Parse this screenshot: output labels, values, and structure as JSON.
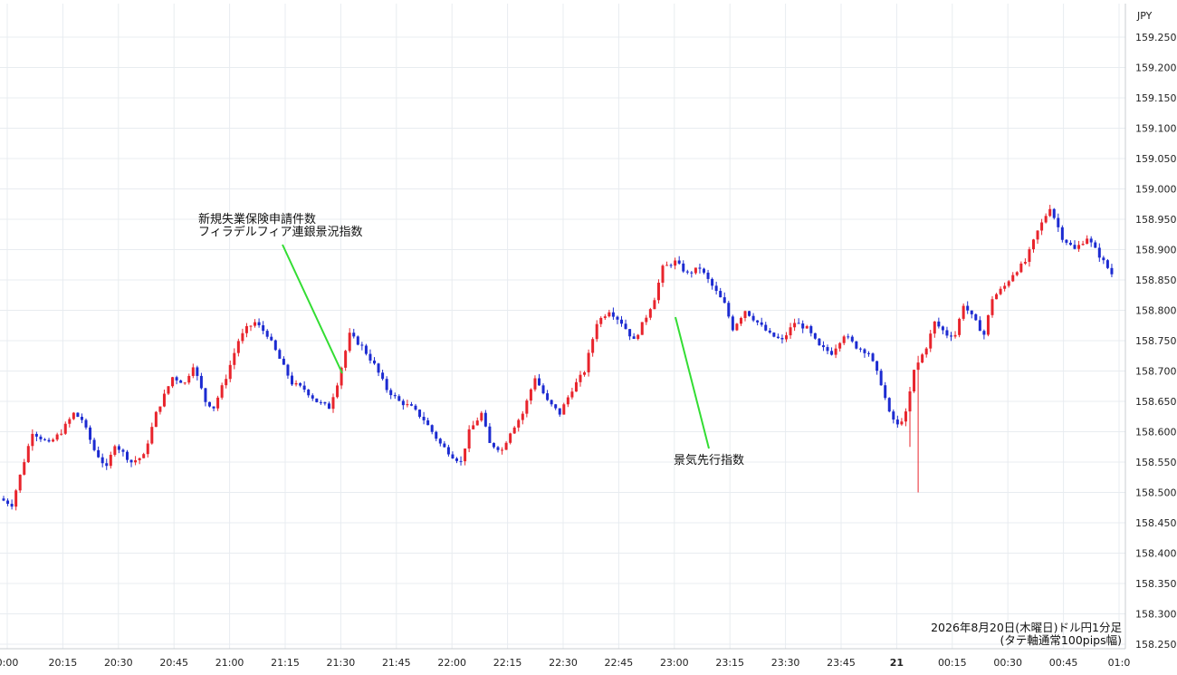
{
  "chart_data": {
    "type": "candlestick",
    "title": "2026年8月20日(木曜日)ドル円1分足",
    "subtitle": "(タテ軸通常100pips幅)",
    "y_unit": "JPY",
    "ylim": [
      158.25,
      159.25
    ],
    "y_ticks": [
      "159.250",
      "159.200",
      "159.150",
      "159.100",
      "159.050",
      "159.000",
      "158.950",
      "158.900",
      "158.850",
      "158.800",
      "158.750",
      "158.700",
      "158.650",
      "158.600",
      "158.550",
      "158.500",
      "158.450",
      "158.400",
      "158.350",
      "158.300",
      "158.250"
    ],
    "x_ticks": [
      {
        "label": "0:00",
        "bold": false
      },
      {
        "label": "20:15",
        "bold": false
      },
      {
        "label": "20:30",
        "bold": false
      },
      {
        "label": "20:45",
        "bold": false
      },
      {
        "label": "21:00",
        "bold": false
      },
      {
        "label": "21:15",
        "bold": false
      },
      {
        "label": "21:30",
        "bold": false
      },
      {
        "label": "21:45",
        "bold": false
      },
      {
        "label": "22:00",
        "bold": false
      },
      {
        "label": "22:15",
        "bold": false
      },
      {
        "label": "22:30",
        "bold": false
      },
      {
        "label": "22:45",
        "bold": false
      },
      {
        "label": "23:00",
        "bold": false
      },
      {
        "label": "23:15",
        "bold": false
      },
      {
        "label": "23:30",
        "bold": false
      },
      {
        "label": "23:45",
        "bold": false
      },
      {
        "label": "21",
        "bold": true
      },
      {
        "label": "00:15",
        "bold": false
      },
      {
        "label": "00:30",
        "bold": false
      },
      {
        "label": "00:45",
        "bold": false
      },
      {
        "label": "01:0",
        "bold": false
      }
    ],
    "path_points": [
      [
        0,
        158.49
      ],
      [
        3,
        158.48
      ],
      [
        8,
        158.6
      ],
      [
        12,
        158.58
      ],
      [
        15,
        158.6
      ],
      [
        18,
        158.63
      ],
      [
        20,
        158.62
      ],
      [
        23,
        158.57
      ],
      [
        26,
        158.54
      ],
      [
        28,
        158.58
      ],
      [
        32,
        158.55
      ],
      [
        35,
        158.56
      ],
      [
        38,
        158.63
      ],
      [
        42,
        158.69
      ],
      [
        45,
        158.68
      ],
      [
        47,
        158.71
      ],
      [
        50,
        158.65
      ],
      [
        52,
        158.64
      ],
      [
        55,
        158.69
      ],
      [
        58,
        158.75
      ],
      [
        60,
        158.77
      ],
      [
        62,
        158.78
      ],
      [
        65,
        158.76
      ],
      [
        68,
        158.72
      ],
      [
        71,
        158.68
      ],
      [
        74,
        158.67
      ],
      [
        77,
        158.65
      ],
      [
        80,
        158.64
      ],
      [
        82,
        158.68
      ],
      [
        85,
        158.76
      ],
      [
        88,
        158.74
      ],
      [
        91,
        158.71
      ],
      [
        94,
        158.67
      ],
      [
        97,
        158.65
      ],
      [
        100,
        158.64
      ],
      [
        103,
        158.62
      ],
      [
        107,
        158.58
      ],
      [
        110,
        158.56
      ],
      [
        112,
        158.55
      ],
      [
        114,
        158.6
      ],
      [
        117,
        158.63
      ],
      [
        119,
        158.58
      ],
      [
        122,
        158.57
      ],
      [
        124,
        158.6
      ],
      [
        127,
        158.63
      ],
      [
        130,
        158.69
      ],
      [
        133,
        158.65
      ],
      [
        136,
        158.63
      ],
      [
        139,
        158.67
      ],
      [
        142,
        158.7
      ],
      [
        145,
        158.78
      ],
      [
        148,
        158.8
      ],
      [
        151,
        158.78
      ],
      [
        154,
        158.75
      ],
      [
        157,
        158.79
      ],
      [
        159,
        158.82
      ],
      [
        161,
        158.87
      ],
      [
        164,
        158.88
      ],
      [
        167,
        158.86
      ],
      [
        170,
        158.87
      ],
      [
        173,
        158.84
      ],
      [
        176,
        158.81
      ],
      [
        178,
        158.77
      ],
      [
        181,
        158.8
      ],
      [
        184,
        158.78
      ],
      [
        187,
        158.76
      ],
      [
        190,
        158.75
      ],
      [
        193,
        158.78
      ],
      [
        196,
        158.77
      ],
      [
        199,
        158.74
      ],
      [
        202,
        158.73
      ],
      [
        205,
        158.76
      ],
      [
        208,
        158.74
      ],
      [
        211,
        158.73
      ],
      [
        214,
        158.68
      ],
      [
        216,
        158.63
      ],
      [
        218,
        158.61
      ],
      [
        220,
        158.63
      ],
      [
        222,
        158.7
      ],
      [
        225,
        158.74
      ],
      [
        227,
        158.78
      ],
      [
        230,
        158.76
      ],
      [
        232,
        158.76
      ],
      [
        234,
        158.81
      ],
      [
        236,
        158.79
      ],
      [
        239,
        158.76
      ],
      [
        241,
        158.82
      ],
      [
        244,
        158.84
      ],
      [
        246,
        158.86
      ],
      [
        249,
        158.88
      ],
      [
        252,
        158.93
      ],
      [
        255,
        158.97
      ],
      [
        258,
        158.92
      ],
      [
        261,
        158.9
      ],
      [
        264,
        158.92
      ],
      [
        267,
        158.89
      ],
      [
        270,
        158.86
      ]
    ],
    "annotations": [
      {
        "id": "jobless-claims",
        "lines": [
          "新規失業保険申請件数",
          "フィラデルフィア連銀景況指数"
        ]
      },
      {
        "id": "leading-index",
        "lines": [
          "景気先行指数"
        ]
      }
    ]
  }
}
